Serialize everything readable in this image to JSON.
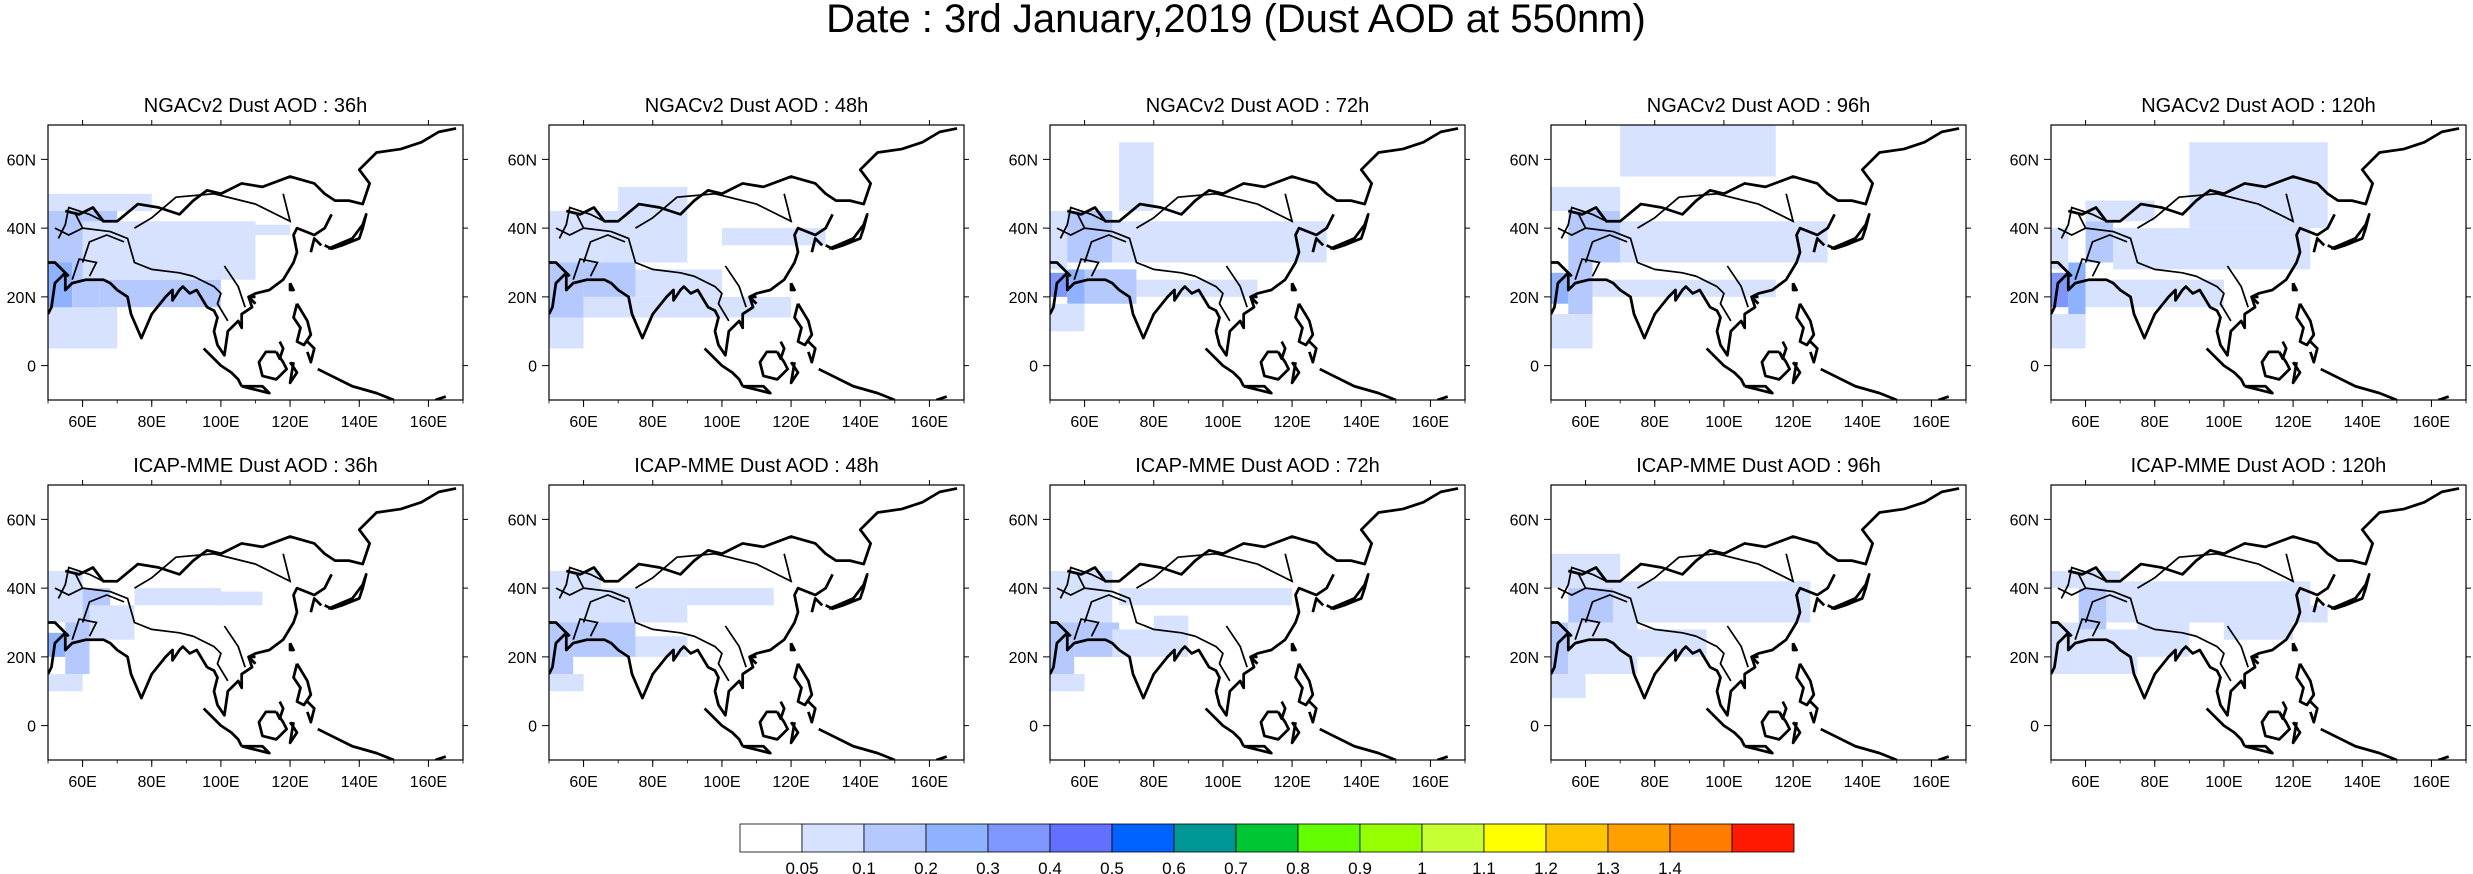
{
  "title": "Date : 3rd January,2019 (Dust AOD at 550nm)",
  "map_extent": {
    "lon": [
      50,
      170
    ],
    "lat": [
      -10,
      70
    ]
  },
  "x_ticks": [
    {
      "lon": 60,
      "label": "60E"
    },
    {
      "lon": 80,
      "label": "80E"
    },
    {
      "lon": 100,
      "label": "100E"
    },
    {
      "lon": 120,
      "label": "120E"
    },
    {
      "lon": 140,
      "label": "140E"
    },
    {
      "lon": 160,
      "label": "160E"
    }
  ],
  "y_ticks": [
    {
      "lat": 60,
      "label": "60N"
    },
    {
      "lat": 40,
      "label": "40N"
    },
    {
      "lat": 20,
      "label": "20N"
    },
    {
      "lat": 0,
      "label": "0"
    }
  ],
  "panels": [
    {
      "title": "NGACv2 Dust AOD : 36h",
      "dust": [
        {
          "lon": [
            50,
            57
          ],
          "lat": [
            8,
            30
          ],
          "level": 3
        },
        {
          "lon": [
            57,
            65
          ],
          "lat": [
            12,
            30
          ],
          "level": 2
        },
        {
          "lon": [
            50,
            60
          ],
          "lat": [
            30,
            45
          ],
          "level": 2
        },
        {
          "lon": [
            60,
            70
          ],
          "lat": [
            35,
            45
          ],
          "level": 2
        },
        {
          "lon": [
            65,
            100
          ],
          "lat": [
            17,
            25
          ],
          "level": 2
        },
        {
          "lon": [
            60,
            110
          ],
          "lat": [
            25,
            42
          ],
          "level": 1
        },
        {
          "lon": [
            110,
            120
          ],
          "lat": [
            38,
            41
          ],
          "level": 1
        },
        {
          "lon": [
            50,
            80
          ],
          "lat": [
            45,
            50
          ],
          "level": 1
        },
        {
          "lon": [
            50,
            70
          ],
          "lat": [
            5,
            17
          ],
          "level": 1
        }
      ]
    },
    {
      "title": "NGACv2 Dust AOD : 48h",
      "dust": [
        {
          "lon": [
            50,
            60
          ],
          "lat": [
            14,
            30
          ],
          "level": 2
        },
        {
          "lon": [
            60,
            75
          ],
          "lat": [
            20,
            30
          ],
          "level": 2
        },
        {
          "lon": [
            50,
            65
          ],
          "lat": [
            30,
            45
          ],
          "level": 1
        },
        {
          "lon": [
            65,
            90
          ],
          "lat": [
            30,
            45
          ],
          "level": 1
        },
        {
          "lon": [
            60,
            120
          ],
          "lat": [
            14,
            20
          ],
          "level": 1
        },
        {
          "lon": [
            75,
            100
          ],
          "lat": [
            20,
            28
          ],
          "level": 1
        },
        {
          "lon": [
            100,
            130
          ],
          "lat": [
            35,
            40
          ],
          "level": 1
        },
        {
          "lon": [
            50,
            60
          ],
          "lat": [
            5,
            14
          ],
          "level": 1
        },
        {
          "lon": [
            70,
            90
          ],
          "lat": [
            45,
            52
          ],
          "level": 1
        }
      ]
    },
    {
      "title": "NGACv2 Dust AOD : 72h",
      "dust": [
        {
          "lon": [
            50,
            55
          ],
          "lat": [
            20,
            27
          ],
          "level": 4
        },
        {
          "lon": [
            55,
            60
          ],
          "lat": [
            18,
            28
          ],
          "level": 3
        },
        {
          "lon": [
            58,
            65
          ],
          "lat": [
            35,
            40
          ],
          "level": 4
        },
        {
          "lon": [
            53,
            68
          ],
          "lat": [
            30,
            45
          ],
          "level": 2
        },
        {
          "lon": [
            50,
            55
          ],
          "lat": [
            28,
            45
          ],
          "level": 1
        },
        {
          "lon": [
            50,
            60
          ],
          "lat": [
            10,
            18
          ],
          "level": 1
        },
        {
          "lon": [
            60,
            75
          ],
          "lat": [
            18,
            28
          ],
          "level": 2
        },
        {
          "lon": [
            75,
            110
          ],
          "lat": [
            20,
            25
          ],
          "level": 1
        },
        {
          "lon": [
            68,
            130
          ],
          "lat": [
            30,
            42
          ],
          "level": 1
        },
        {
          "lon": [
            70,
            80
          ],
          "lat": [
            45,
            65
          ],
          "level": 1
        }
      ]
    },
    {
      "title": "NGACv2 Dust AOD : 96h",
      "dust": [
        {
          "lon": [
            50,
            55
          ],
          "lat": [
            18,
            27
          ],
          "level": 3
        },
        {
          "lon": [
            55,
            62
          ],
          "lat": [
            15,
            30
          ],
          "level": 2
        },
        {
          "lon": [
            60,
            68
          ],
          "lat": [
            35,
            42
          ],
          "level": 3
        },
        {
          "lon": [
            55,
            70
          ],
          "lat": [
            30,
            45
          ],
          "level": 2
        },
        {
          "lon": [
            50,
            70
          ],
          "lat": [
            45,
            52
          ],
          "level": 1
        },
        {
          "lon": [
            62,
            115
          ],
          "lat": [
            20,
            25
          ],
          "level": 1
        },
        {
          "lon": [
            70,
            130
          ],
          "lat": [
            30,
            42
          ],
          "level": 1
        },
        {
          "lon": [
            70,
            115
          ],
          "lat": [
            55,
            70
          ],
          "level": 1
        },
        {
          "lon": [
            50,
            62
          ],
          "lat": [
            5,
            15
          ],
          "level": 1
        }
      ]
    },
    {
      "title": "NGACv2 Dust AOD : 120h",
      "dust": [
        {
          "lon": [
            50,
            55
          ],
          "lat": [
            17,
            27
          ],
          "level": 4
        },
        {
          "lon": [
            55,
            60
          ],
          "lat": [
            15,
            30
          ],
          "level": 3
        },
        {
          "lon": [
            60,
            68
          ],
          "lat": [
            30,
            42
          ],
          "level": 2
        },
        {
          "lon": [
            60,
            80
          ],
          "lat": [
            42,
            48
          ],
          "level": 1
        },
        {
          "lon": [
            50,
            55
          ],
          "lat": [
            28,
            40
          ],
          "level": 1
        },
        {
          "lon": [
            60,
            100
          ],
          "lat": [
            17,
            25
          ],
          "level": 1
        },
        {
          "lon": [
            68,
            125
          ],
          "lat": [
            28,
            40
          ],
          "level": 1
        },
        {
          "lon": [
            90,
            130
          ],
          "lat": [
            40,
            65
          ],
          "level": 1
        },
        {
          "lon": [
            50,
            60
          ],
          "lat": [
            5,
            15
          ],
          "level": 1
        }
      ]
    },
    {
      "title": "ICAP-MME Dust AOD : 36h",
      "dust": [
        {
          "lon": [
            50,
            55
          ],
          "lat": [
            20,
            27
          ],
          "level": 3
        },
        {
          "lon": [
            55,
            62
          ],
          "lat": [
            15,
            30
          ],
          "level": 2
        },
        {
          "lon": [
            60,
            68
          ],
          "lat": [
            30,
            40
          ],
          "level": 2
        },
        {
          "lon": [
            50,
            60
          ],
          "lat": [
            30,
            45
          ],
          "level": 1
        },
        {
          "lon": [
            62,
            75
          ],
          "lat": [
            25,
            35
          ],
          "level": 1
        },
        {
          "lon": [
            75,
            100
          ],
          "lat": [
            35,
            40
          ],
          "level": 1
        },
        {
          "lon": [
            100,
            112
          ],
          "lat": [
            35,
            39
          ],
          "level": 1
        },
        {
          "lon": [
            50,
            60
          ],
          "lat": [
            10,
            15
          ],
          "level": 1
        }
      ]
    },
    {
      "title": "ICAP-MME Dust AOD : 48h",
      "dust": [
        {
          "lon": [
            50,
            57
          ],
          "lat": [
            15,
            30
          ],
          "level": 2
        },
        {
          "lon": [
            57,
            75
          ],
          "lat": [
            20,
            32
          ],
          "level": 2
        },
        {
          "lon": [
            50,
            65
          ],
          "lat": [
            30,
            45
          ],
          "level": 1
        },
        {
          "lon": [
            65,
            90
          ],
          "lat": [
            30,
            40
          ],
          "level": 1
        },
        {
          "lon": [
            75,
            90
          ],
          "lat": [
            20,
            26
          ],
          "level": 1
        },
        {
          "lon": [
            90,
            115
          ],
          "lat": [
            35,
            40
          ],
          "level": 1
        },
        {
          "lon": [
            50,
            60
          ],
          "lat": [
            10,
            15
          ],
          "level": 1
        }
      ]
    },
    {
      "title": "ICAP-MME Dust AOD : 72h",
      "dust": [
        {
          "lon": [
            50,
            57
          ],
          "lat": [
            15,
            30
          ],
          "level": 2
        },
        {
          "lon": [
            57,
            70
          ],
          "lat": [
            20,
            30
          ],
          "level": 2
        },
        {
          "lon": [
            50,
            68
          ],
          "lat": [
            30,
            45
          ],
          "level": 1
        },
        {
          "lon": [
            68,
            90
          ],
          "lat": [
            20,
            28
          ],
          "level": 1
        },
        {
          "lon": [
            70,
            120
          ],
          "lat": [
            35,
            40
          ],
          "level": 1
        },
        {
          "lon": [
            80,
            90
          ],
          "lat": [
            28,
            32
          ],
          "level": 1
        },
        {
          "lon": [
            50,
            60
          ],
          "lat": [
            10,
            15
          ],
          "level": 1
        }
      ]
    },
    {
      "title": "ICAP-MME Dust AOD : 96h",
      "dust": [
        {
          "lon": [
            50,
            55
          ],
          "lat": [
            15,
            30
          ],
          "level": 2
        },
        {
          "lon": [
            55,
            68
          ],
          "lat": [
            30,
            40
          ],
          "level": 2
        },
        {
          "lon": [
            50,
            70
          ],
          "lat": [
            40,
            50
          ],
          "level": 1
        },
        {
          "lon": [
            55,
            75
          ],
          "lat": [
            15,
            30
          ],
          "level": 1
        },
        {
          "lon": [
            75,
            95
          ],
          "lat": [
            20,
            28
          ],
          "level": 1
        },
        {
          "lon": [
            68,
            125
          ],
          "lat": [
            30,
            42
          ],
          "level": 1
        },
        {
          "lon": [
            50,
            60
          ],
          "lat": [
            8,
            15
          ],
          "level": 1
        }
      ]
    },
    {
      "title": "ICAP-MME Dust AOD : 120h",
      "dust": [
        {
          "lon": [
            58,
            66
          ],
          "lat": [
            28,
            40
          ],
          "level": 2
        },
        {
          "lon": [
            50,
            58
          ],
          "lat": [
            15,
            30
          ],
          "level": 1
        },
        {
          "lon": [
            58,
            75
          ],
          "lat": [
            15,
            28
          ],
          "level": 1
        },
        {
          "lon": [
            50,
            70
          ],
          "lat": [
            40,
            45
          ],
          "level": 1
        },
        {
          "lon": [
            66,
            125
          ],
          "lat": [
            30,
            42
          ],
          "level": 1
        },
        {
          "lon": [
            75,
            90
          ],
          "lat": [
            20,
            30
          ],
          "level": 1
        },
        {
          "lon": [
            100,
            120
          ],
          "lat": [
            25,
            30
          ],
          "level": 1
        },
        {
          "lon": [
            125,
            130
          ],
          "lat": [
            30,
            35
          ],
          "level": 1
        }
      ]
    }
  ],
  "colorbar": {
    "colors": [
      "#ffffff",
      "#d6e2ff",
      "#b5c9ff",
      "#8eb2ff",
      "#7f96ff",
      "#6370ff",
      "#0063ff",
      "#009696",
      "#00c633",
      "#63ff00",
      "#96ff00",
      "#c6ff33",
      "#ffff00",
      "#ffc600",
      "#ffa000",
      "#ff7c00",
      "#ff1900"
    ],
    "labels": [
      "0.05",
      "0.1",
      "0.2",
      "0.3",
      "0.4",
      "0.5",
      "0.6",
      "0.7",
      "0.8",
      "0.9",
      "1",
      "1.1",
      "1.2",
      "1.3",
      "1.4"
    ]
  }
}
